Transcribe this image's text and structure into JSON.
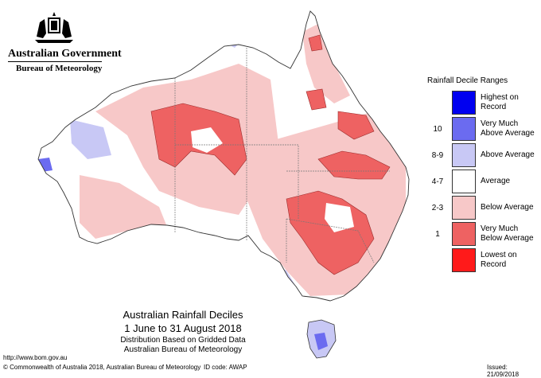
{
  "header": {
    "gov_name": "Australian Government",
    "bureau_name": "Bureau of Meteorology",
    "crest_icon": "coat-of-arms-icon"
  },
  "legend": {
    "title": "Rainfall Decile Ranges",
    "items": [
      {
        "code": "",
        "label": "Highest on Record",
        "color": "#0000f0"
      },
      {
        "code": "10",
        "label": "Very Much Above Average",
        "color": "#6b6bf0"
      },
      {
        "code": "8-9",
        "label": "Above Average",
        "color": "#c8c8f5"
      },
      {
        "code": "4-7",
        "label": "Average",
        "color": "#ffffff"
      },
      {
        "code": "2-3",
        "label": "Below Average",
        "color": "#f7c8c8"
      },
      {
        "code": "1",
        "label": "Very Much Below Average",
        "color": "#ee6262"
      },
      {
        "code": "",
        "label": "Lowest on Record",
        "color": "#ff1a1a"
      }
    ]
  },
  "map": {
    "title": "Australian Rainfall Deciles",
    "period": "1 June to 31 August 2018",
    "note": "Distribution Based on Gridded Data",
    "source": "Australian Bureau of Meteorology"
  },
  "footer": {
    "url": "http://www.bom.gov.au",
    "copyright": "© Commonwealth of Australia 2018, Australian Bureau of Meteorology",
    "id_code": "ID code: AWAP",
    "issued": "Issued: 21/09/2018"
  }
}
